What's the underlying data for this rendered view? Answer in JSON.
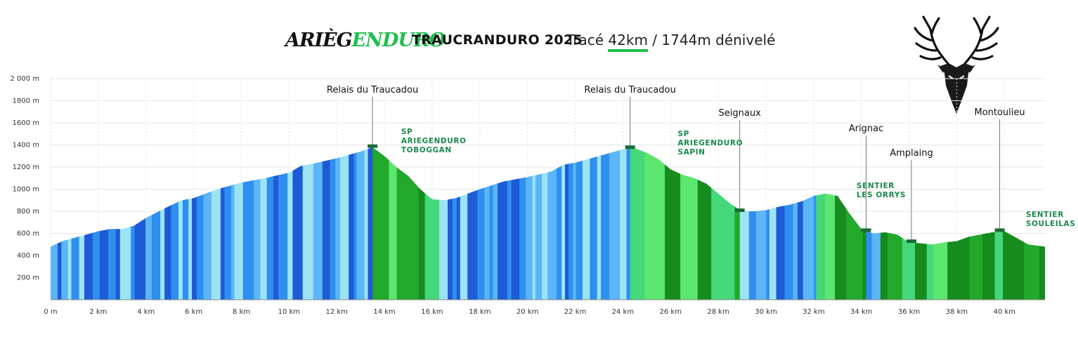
{
  "header": {
    "brand_part1": "ARIÈG",
    "brand_part2": "ENDURO",
    "event_title": "TRAUCRANDURO 2025",
    "trace_label": "Tracé",
    "trace_distance": "42km",
    "trace_elevation": "/ 1744m dénivelé"
  },
  "colors": {
    "climb": [
      "#1e5bd6",
      "#2f8ff0",
      "#5cb5f6",
      "#9ce4f4"
    ],
    "descent": [
      "#168c1e",
      "#22a82a",
      "#45d87a",
      "#5ce670"
    ],
    "label": "#1a8a4a"
  },
  "chart_data": {
    "type": "area",
    "title": "",
    "xlabel": "",
    "ylabel": "",
    "xlim": [
      0,
      41.7
    ],
    "ylim": [
      0,
      2000
    ],
    "grid": true,
    "x_ticks": [
      {
        "v": 0,
        "label": "0 m"
      },
      {
        "v": 2,
        "label": "2 km"
      },
      {
        "v": 4,
        "label": "4 km"
      },
      {
        "v": 6,
        "label": "6 km"
      },
      {
        "v": 8,
        "label": "8 km"
      },
      {
        "v": 10,
        "label": "10 km"
      },
      {
        "v": 12,
        "label": "12 km"
      },
      {
        "v": 14,
        "label": "14 km"
      },
      {
        "v": 16,
        "label": "16 km"
      },
      {
        "v": 18,
        "label": "18 km"
      },
      {
        "v": 20,
        "label": "20 km"
      },
      {
        "v": 22,
        "label": "22 km"
      },
      {
        "v": 24,
        "label": "24 km"
      },
      {
        "v": 26,
        "label": "26 km"
      },
      {
        "v": 28,
        "label": "28 km"
      },
      {
        "v": 30,
        "label": "30 km"
      },
      {
        "v": 32,
        "label": "32 km"
      },
      {
        "v": 34,
        "label": "34 km"
      },
      {
        "v": 36,
        "label": "36 km"
      },
      {
        "v": 38,
        "label": "38 km"
      },
      {
        "v": 40,
        "label": "40 km"
      }
    ],
    "y_ticks": [
      {
        "v": 200,
        "label": "200 m"
      },
      {
        "v": 400,
        "label": "400 m"
      },
      {
        "v": 600,
        "label": "600 m"
      },
      {
        "v": 800,
        "label": "800 m"
      },
      {
        "v": 1000,
        "label": "1000 m"
      },
      {
        "v": 1200,
        "label": "1200 m"
      },
      {
        "v": 1400,
        "label": "1400 m"
      },
      {
        "v": 1600,
        "label": "1600 m"
      },
      {
        "v": 1800,
        "label": "1800 m"
      },
      {
        "v": 2000,
        "label": "2 000 m"
      }
    ],
    "profile": [
      [
        0,
        480
      ],
      [
        0.5,
        530
      ],
      [
        1,
        560
      ],
      [
        1.5,
        590
      ],
      [
        2,
        620
      ],
      [
        2.5,
        640
      ],
      [
        3,
        640
      ],
      [
        3.5,
        670
      ],
      [
        4,
        740
      ],
      [
        5,
        850
      ],
      [
        5.5,
        900
      ],
      [
        6,
        920
      ],
      [
        7,
        1000
      ],
      [
        8,
        1060
      ],
      [
        9,
        1100
      ],
      [
        10,
        1150
      ],
      [
        10.5,
        1210
      ],
      [
        11,
        1230
      ],
      [
        12,
        1280
      ],
      [
        13,
        1340
      ],
      [
        13.5,
        1380
      ],
      [
        14,
        1300
      ],
      [
        14.5,
        1200
      ],
      [
        15,
        1120
      ],
      [
        15.5,
        1000
      ],
      [
        16,
        910
      ],
      [
        16.5,
        900
      ],
      [
        17,
        920
      ],
      [
        17.5,
        960
      ],
      [
        18,
        1000
      ],
      [
        19,
        1070
      ],
      [
        20,
        1110
      ],
      [
        21,
        1160
      ],
      [
        21.5,
        1220
      ],
      [
        22,
        1240
      ],
      [
        23,
        1300
      ],
      [
        24,
        1360
      ],
      [
        24.5,
        1370
      ],
      [
        25,
        1330
      ],
      [
        25.5,
        1270
      ],
      [
        26,
        1180
      ],
      [
        26.5,
        1130
      ],
      [
        27,
        1100
      ],
      [
        27.5,
        1050
      ],
      [
        28,
        960
      ],
      [
        28.5,
        870
      ],
      [
        29,
        800
      ],
      [
        29.5,
        800
      ],
      [
        30,
        810
      ],
      [
        30.5,
        840
      ],
      [
        31,
        860
      ],
      [
        31.5,
        890
      ],
      [
        32,
        940
      ],
      [
        32.5,
        960
      ],
      [
        33,
        940
      ],
      [
        33.5,
        780
      ],
      [
        34,
        640
      ],
      [
        34.5,
        600
      ],
      [
        35,
        610
      ],
      [
        35.5,
        590
      ],
      [
        36,
        520
      ],
      [
        37,
        500
      ],
      [
        37.5,
        520
      ],
      [
        38,
        530
      ],
      [
        38.5,
        570
      ],
      [
        39,
        590
      ],
      [
        39.5,
        610
      ],
      [
        40,
        620
      ],
      [
        40.5,
        560
      ],
      [
        41,
        500
      ],
      [
        41.7,
        480
      ]
    ],
    "waypoints": [
      {
        "name": "Relais du Traucadou",
        "x": 13.5,
        "y": 1380
      },
      {
        "name": "Relais du Traucadou",
        "x": 24.3,
        "y": 1370
      },
      {
        "name": "Seignaux",
        "x": 28.9,
        "y": 800
      },
      {
        "name": "Arignac",
        "x": 34.2,
        "y": 620
      },
      {
        "name": "Amplaing",
        "x": 36.1,
        "y": 520
      },
      {
        "name": "Montoulieu",
        "x": 39.8,
        "y": 620
      }
    ],
    "segments": [
      {
        "lines": [
          "SP",
          "ARIEGENDURO",
          "TOBOGGAN"
        ],
        "x": 14.7,
        "y": 1500
      },
      {
        "lines": [
          "SP",
          "ARIEGENDURO",
          "SAPIN"
        ],
        "x": 26.3,
        "y": 1480
      },
      {
        "lines": [
          "SENTIER",
          "LES ORRYS"
        ],
        "x": 33.8,
        "y": 1010
      },
      {
        "lines": [
          "SENTIER",
          "SOULEILAS"
        ],
        "x": 40.9,
        "y": 750
      }
    ],
    "stripe_sections": [
      {
        "from": 0,
        "to": 13.5,
        "kind": "climb"
      },
      {
        "from": 13.5,
        "to": 16.3,
        "kind": "descent"
      },
      {
        "from": 16.3,
        "to": 24.3,
        "kind": "climb"
      },
      {
        "from": 24.3,
        "to": 28.9,
        "kind": "descent"
      },
      {
        "from": 28.9,
        "to": 32.1,
        "kind": "climb"
      },
      {
        "from": 32.1,
        "to": 34.2,
        "kind": "descent"
      },
      {
        "from": 34.2,
        "to": 34.8,
        "kind": "climb"
      },
      {
        "from": 34.8,
        "to": 39.6,
        "kind": "descent"
      },
      {
        "from": 39.6,
        "to": 41.7,
        "kind": "descent"
      }
    ]
  }
}
